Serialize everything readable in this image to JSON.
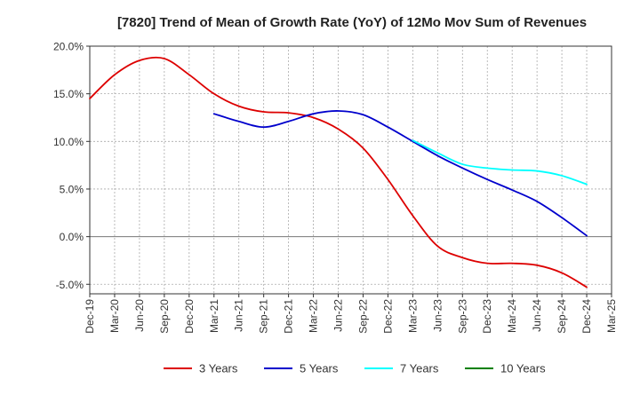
{
  "chart_data": {
    "type": "line",
    "title": "[7820]  Trend of Mean of Growth Rate (YoY) of 12Mo Mov Sum of Revenues",
    "xlabel": "",
    "ylabel": "",
    "ylim": [
      -6.0,
      20.0
    ],
    "y_ticks": [
      20.0,
      15.0,
      10.0,
      5.0,
      0.0,
      -5.0
    ],
    "y_tick_labels": [
      "20.0%",
      "15.0%",
      "10.0%",
      "5.0%",
      "0.0%",
      "-5.0%"
    ],
    "x_tick_labels": [
      "Dec-19",
      "Mar-20",
      "Jun-20",
      "Sep-20",
      "Dec-20",
      "Mar-21",
      "Jun-21",
      "Sep-21",
      "Dec-21",
      "Mar-22",
      "Jun-22",
      "Sep-22",
      "Dec-22",
      "Mar-23",
      "Jun-23",
      "Sep-23",
      "Dec-23",
      "Mar-24",
      "Jun-24",
      "Sep-24",
      "Dec-24",
      "Mar-25"
    ],
    "grid": true,
    "legend_position": "bottom",
    "series": [
      {
        "name": "3 Years",
        "color": "#dd0000",
        "x_index": [
          0,
          1,
          2,
          3,
          4,
          5,
          6,
          7,
          8,
          9,
          10,
          11,
          12,
          13,
          14,
          15,
          16,
          17,
          18,
          19,
          20
        ],
        "values": [
          14.5,
          17.0,
          18.5,
          18.7,
          17.0,
          15.0,
          13.7,
          13.1,
          13.0,
          12.5,
          11.3,
          9.3,
          6.0,
          2.2,
          -1.0,
          -2.2,
          -2.8,
          -2.8,
          -3.0,
          -3.8,
          -5.3
        ]
      },
      {
        "name": "5 Years",
        "color": "#0000cc",
        "x_index": [
          5,
          6,
          7,
          8,
          9,
          10,
          11,
          12,
          13,
          14,
          15,
          16,
          17,
          18,
          19,
          20
        ],
        "values": [
          12.9,
          12.1,
          11.5,
          12.1,
          12.9,
          13.2,
          12.8,
          11.5,
          10.0,
          8.5,
          7.2,
          6.0,
          4.9,
          3.7,
          2.0,
          0.1
        ]
      },
      {
        "name": "7 Years",
        "color": "#00ffff",
        "x_index": [
          13,
          14,
          15,
          16,
          17,
          18,
          19,
          20
        ],
        "values": [
          10.1,
          8.8,
          7.6,
          7.2,
          7.0,
          6.9,
          6.4,
          5.5
        ]
      },
      {
        "name": "10 Years",
        "color": "#008000",
        "x_index": [],
        "values": []
      }
    ]
  }
}
